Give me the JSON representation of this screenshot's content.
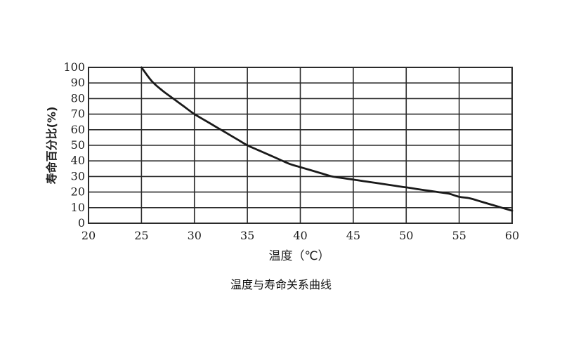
{
  "chart_data": {
    "type": "line",
    "caption": "温度与寿命关系曲线",
    "xlabel": "温度（℃）",
    "ylabel": "寿命百分比(%)",
    "xlim": [
      20,
      60
    ],
    "ylim": [
      0,
      100
    ],
    "xticks": [
      20,
      25,
      30,
      35,
      40,
      45,
      50,
      55,
      60
    ],
    "yticks": [
      0,
      10,
      20,
      30,
      40,
      50,
      60,
      70,
      80,
      90,
      100
    ],
    "grid": true,
    "series": [
      {
        "x": [
          25,
          26,
          27,
          28,
          29,
          30,
          31,
          32,
          33,
          34,
          35,
          36,
          37,
          38,
          39,
          40,
          41,
          42,
          43,
          44,
          45,
          46,
          47,
          48,
          49,
          50,
          51,
          52,
          53,
          54,
          55,
          56,
          57,
          58,
          59,
          60
        ],
        "y": [
          100,
          91,
          85,
          80,
          75,
          70,
          66,
          62,
          58,
          54,
          50,
          47,
          44,
          41,
          38,
          36,
          34,
          32,
          30,
          29,
          28,
          27,
          26,
          25,
          24,
          23,
          22,
          21,
          20,
          19,
          17,
          16,
          14,
          12,
          10,
          8
        ]
      }
    ]
  },
  "colors": {
    "line": "#1a1a1a",
    "grid": "#2a2a2a",
    "text": "#1e1e1e"
  }
}
